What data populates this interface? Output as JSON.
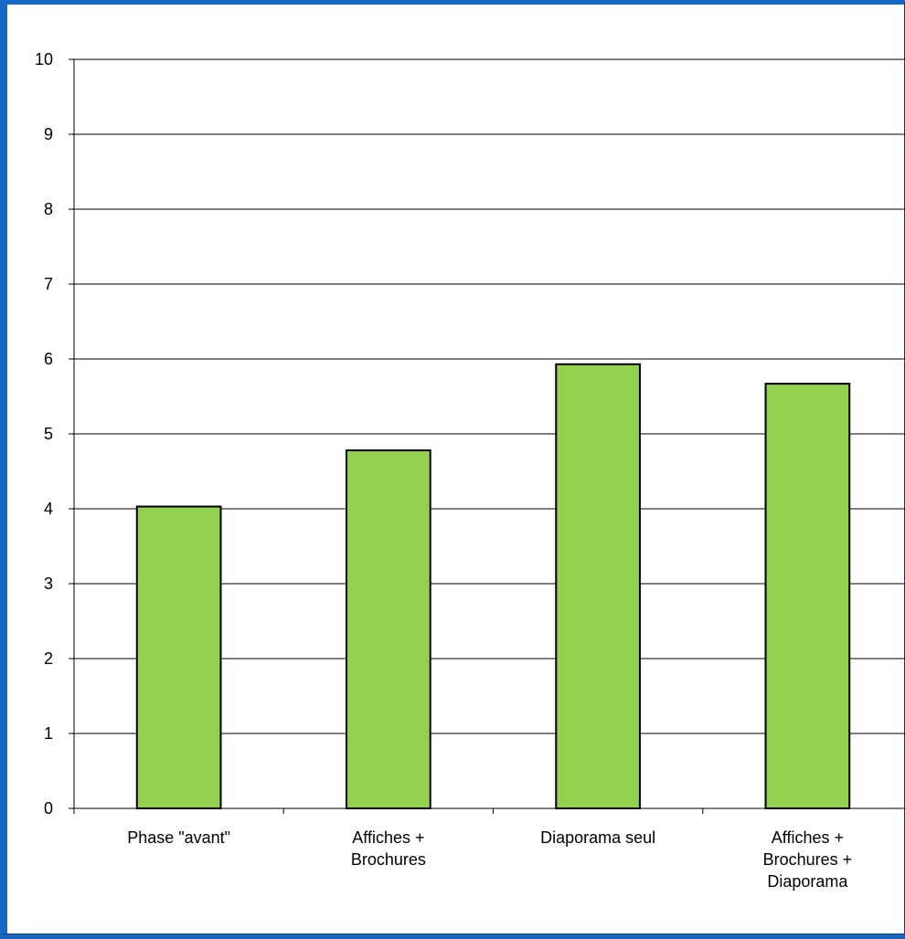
{
  "chart_data": {
    "type": "bar",
    "categories": [
      [
        "Phase \"avant\""
      ],
      [
        "Affiches +",
        "Brochures"
      ],
      [
        "Diaporama seul"
      ],
      [
        "Affiches +",
        "Brochures +",
        "Diaporama"
      ]
    ],
    "values": [
      4.03,
      4.78,
      5.93,
      5.67
    ],
    "ylim": [
      0,
      10
    ],
    "yticks": [
      0,
      1,
      2,
      3,
      4,
      5,
      6,
      7,
      8,
      9,
      10
    ],
    "grid": true,
    "title": "",
    "xlabel": "",
    "ylabel": "",
    "colors": {
      "bar": "#92d050",
      "bar_border": "#000000",
      "grid": "#000000",
      "frame": "#1467c4"
    }
  }
}
